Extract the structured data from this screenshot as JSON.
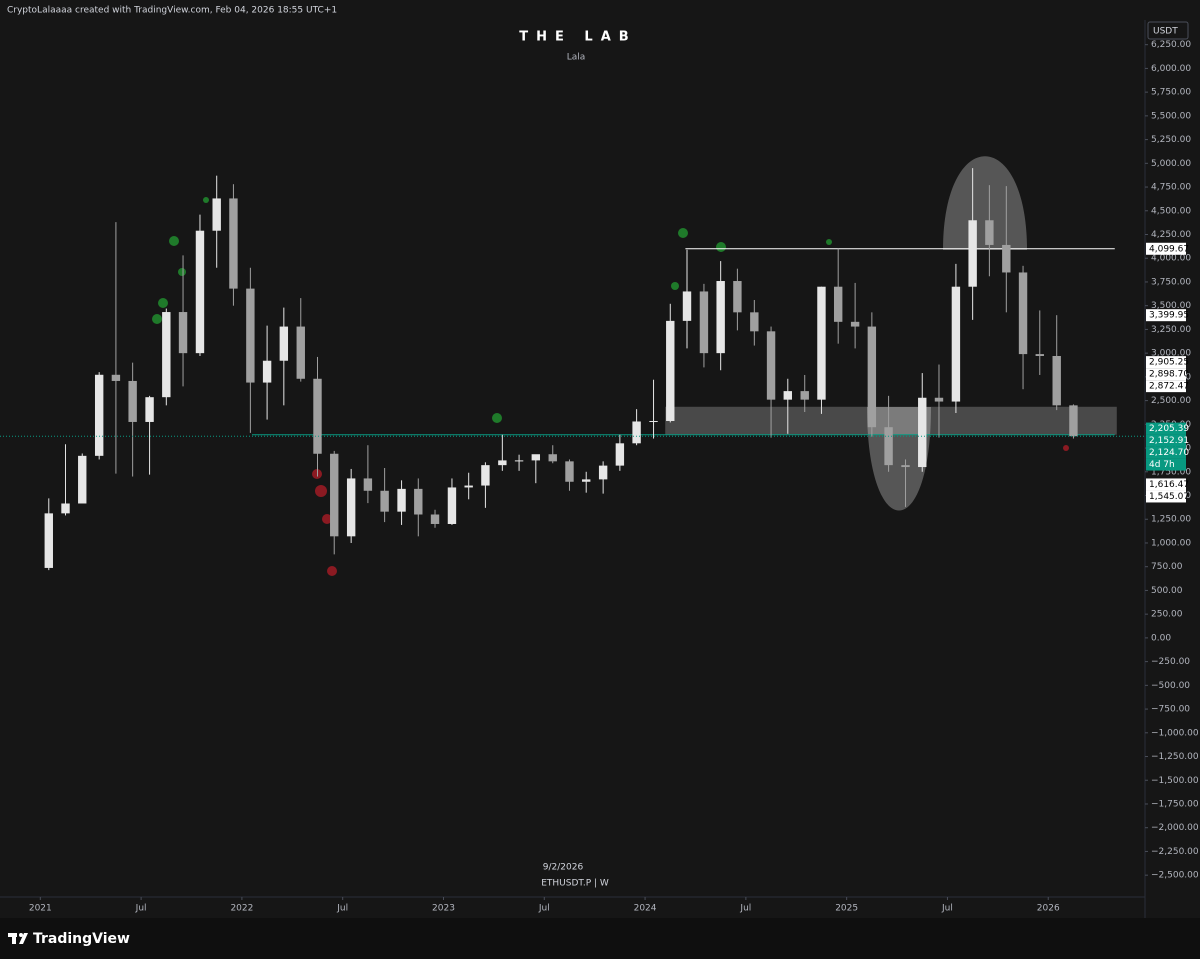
{
  "header": "CryptoLalaaaa created with TradingView.com, Feb 04, 2026 18:55 UTC+1",
  "logo": "TradingView",
  "chart_data": {
    "type": "candlestick",
    "title": "THE LAB",
    "subtitle": "Lala",
    "currency": "USDT",
    "symbol": "ETHUSDT.P | W",
    "date_label": "9/2/2026",
    "up_color": "#e6e6e6",
    "down_color": "#a0a0a0",
    "x": [
      2021.042,
      2021.125,
      2021.208,
      2021.292,
      2021.375,
      2021.458,
      2021.542,
      2021.625,
      2021.708,
      2021.792,
      2021.875,
      2021.958,
      2022.042,
      2022.125,
      2022.208,
      2022.292,
      2022.375,
      2022.458,
      2022.542,
      2022.625,
      2022.708,
      2022.792,
      2022.875,
      2022.958,
      2023.042,
      2023.125,
      2023.208,
      2023.292,
      2023.375,
      2023.458,
      2023.542,
      2023.625,
      2023.708,
      2023.792,
      2023.875,
      2023.958,
      2024.042,
      2024.125,
      2024.208,
      2024.292,
      2024.375,
      2024.458,
      2024.542,
      2024.625,
      2024.708,
      2024.792,
      2024.875,
      2024.958,
      2025.042,
      2025.125,
      2025.208,
      2025.292,
      2025.375,
      2025.458,
      2025.542,
      2025.625,
      2025.708,
      2025.792,
      2025.875,
      2025.958,
      2026.042,
      2026.125
    ],
    "open": [
      737,
      1312,
      1416,
      1918,
      2772,
      2707,
      2275,
      2536,
      3433,
      3000,
      4290,
      4630,
      3680,
      2690,
      2920,
      3280,
      2730,
      1940,
      1070,
      1680,
      1550,
      1330,
      1570,
      1300,
      1200,
      1585,
      1605,
      1820,
      1870,
      1870,
      1935,
      1860,
      1645,
      1670,
      1815,
      2050,
      2280,
      2285,
      3340,
      3650,
      3000,
      3760,
      3430,
      3230,
      2510,
      2600,
      2510,
      3700,
      3330,
      3280,
      2220,
      1820,
      1800,
      2530,
      2490,
      3700,
      4400,
      4140,
      3850,
      2990,
      2970,
      2450
    ],
    "high": [
      1470,
      2040,
      1943,
      2800,
      4380,
      2900,
      2550,
      3470,
      4030,
      4460,
      4870,
      4780,
      3900,
      3290,
      3480,
      3580,
      2960,
      1970,
      1780,
      2030,
      1790,
      1660,
      1680,
      1350,
      1680,
      1740,
      1850,
      2140,
      1930,
      1930,
      2030,
      1880,
      1750,
      1860,
      2140,
      2410,
      2720,
      3520,
      4090,
      3730,
      3970,
      3890,
      3560,
      3280,
      2730,
      2770,
      3700,
      4100,
      3740,
      3430,
      2550,
      1880,
      2790,
      2880,
      3940,
      4950,
      4770,
      4760,
      3920,
      3450,
      3400,
      2460
    ],
    "low": [
      714,
      1290,
      1420,
      1880,
      1730,
      1700,
      1720,
      2450,
      2650,
      2970,
      3900,
      3500,
      2160,
      2300,
      2450,
      2700,
      1700,
      880,
      1000,
      1420,
      1220,
      1190,
      1070,
      1160,
      1190,
      1460,
      1370,
      1760,
      1760,
      1630,
      1840,
      1550,
      1530,
      1520,
      1760,
      2030,
      2100,
      2270,
      3050,
      2850,
      2820,
      3240,
      3080,
      2110,
      2150,
      2380,
      2360,
      3100,
      3050,
      2120,
      1750,
      1380,
      1750,
      2110,
      2370,
      3350,
      3810,
      3430,
      2620,
      2770,
      2400,
      2100
    ],
    "close": [
      1312,
      1416,
      1918,
      2772,
      2707,
      2275,
      2536,
      3433,
      3000,
      4290,
      4630,
      3680,
      2690,
      2920,
      3280,
      2730,
      1940,
      1070,
      1680,
      1550,
      1330,
      1570,
      1300,
      1200,
      1585,
      1605,
      1820,
      1870,
      1870,
      1935,
      1860,
      1645,
      1670,
      1815,
      2050,
      2280,
      2285,
      3340,
      3650,
      3000,
      3760,
      3430,
      3230,
      2510,
      2600,
      2510,
      3700,
      3330,
      3280,
      2220,
      1820,
      1800,
      2530,
      2490,
      3700,
      4400,
      4140,
      3850,
      2990,
      2970,
      2450,
      2124.7
    ],
    "xlim": [
      2020.8,
      2026.48
    ],
    "ylim": [
      -2730,
      6510
    ],
    "xticks": [
      2021,
      {
        "value": 2021.5,
        "label": "Jul"
      },
      2022,
      {
        "value": 2022.5,
        "label": "Jul"
      },
      2023,
      {
        "value": 2023.5,
        "label": "Jul"
      },
      2024,
      {
        "value": 2024.5,
        "label": "Jul"
      },
      2025,
      {
        "value": 2025.5,
        "label": "Jul"
      },
      2026
    ],
    "yticks": [
      {
        "value": 6250,
        "label": "6,250.00"
      },
      {
        "value": 6000,
        "label": "6,000.00"
      },
      {
        "value": 5750,
        "label": "5,750.00"
      },
      {
        "value": 5500,
        "label": "5,500.00"
      },
      {
        "value": 5250,
        "label": "5,250.00"
      },
      {
        "value": 5000,
        "label": "5,000.00"
      },
      {
        "value": 4750,
        "label": "4,750.00"
      },
      {
        "value": 4500,
        "label": "4,500.00"
      },
      {
        "value": 4250,
        "label": "4,250.00"
      },
      {
        "value": 4000,
        "label": "4,000.00"
      },
      {
        "value": 3750,
        "label": "3,750.00"
      },
      {
        "value": 3500,
        "label": "3,500.00"
      },
      {
        "value": 3250,
        "label": "3,250.00"
      },
      {
        "value": 3000,
        "label": "3,000.00"
      },
      {
        "value": 2750,
        "label": "2,750.00"
      },
      {
        "value": 2500,
        "label": "2,500.00"
      },
      {
        "value": 2250,
        "label": "2,250.00"
      },
      {
        "value": 2000,
        "label": "2,000.00"
      },
      {
        "value": 1750,
        "label": "1,750.00"
      },
      {
        "value": 1500,
        "label": "1,500.00"
      },
      {
        "value": 1250,
        "label": "1,250.00"
      },
      {
        "value": 1000,
        "label": "1,000.00"
      },
      {
        "value": 750,
        "label": "750.00"
      },
      {
        "value": 500,
        "label": "500.00"
      },
      {
        "value": 250,
        "label": "250.00"
      },
      {
        "value": 0,
        "label": "0.00"
      },
      {
        "value": -250,
        "label": "−250.00"
      },
      {
        "value": -500,
        "label": "−500.00"
      },
      {
        "value": -750,
        "label": "−750.00"
      },
      {
        "value": -1000,
        "label": "−1,000.00"
      },
      {
        "value": -1250,
        "label": "−1,250.00"
      },
      {
        "value": -1500,
        "label": "−1,500.00"
      },
      {
        "value": -1750,
        "label": "−1,750.00"
      },
      {
        "value": -2000,
        "label": "−2,000.00"
      },
      {
        "value": -2250,
        "label": "−2,250.00"
      },
      {
        "value": -2500,
        "label": "−2,500.00"
      }
    ],
    "price_labels": [
      {
        "value": 4099.67,
        "label": "4,099.67",
        "color": "#ffffff"
      },
      {
        "value": 3399.95,
        "label": "3,399.95",
        "color": "#ffffff"
      },
      {
        "value": 2905.25,
        "label": "2,905.25",
        "color": "#ffffff"
      },
      {
        "value": 2898.7,
        "label": "2,898.70",
        "color": "#ffffff"
      },
      {
        "value": 2872.47,
        "label": "2,872.47",
        "color": "#ffffff"
      },
      {
        "value": 2205.39,
        "label": "2,205.39",
        "color": "#089981"
      },
      {
        "value": 2152.91,
        "label": "2,152.91",
        "color": "#089981"
      },
      {
        "value": 2124.7,
        "label": "2,124.70",
        "color": "#089981"
      },
      {
        "value": 1616.47,
        "label": "1,616.47",
        "color": "#ffffff"
      },
      {
        "value": 1545.07,
        "label": "1,545.07",
        "color": "#ffffff"
      }
    ],
    "countdown": "4d 7h",
    "levels": [
      {
        "value": 4099.67,
        "from": 2024.2,
        "to": 2026.33,
        "color": "#ffffff"
      },
      {
        "value": 2140,
        "from": 2022.05,
        "to": 2026.33,
        "color": "#089981"
      }
    ],
    "zone": {
      "range": [
        2140,
        2435
      ],
      "from": 2024.1,
      "to": 2026.34
    }
  }
}
